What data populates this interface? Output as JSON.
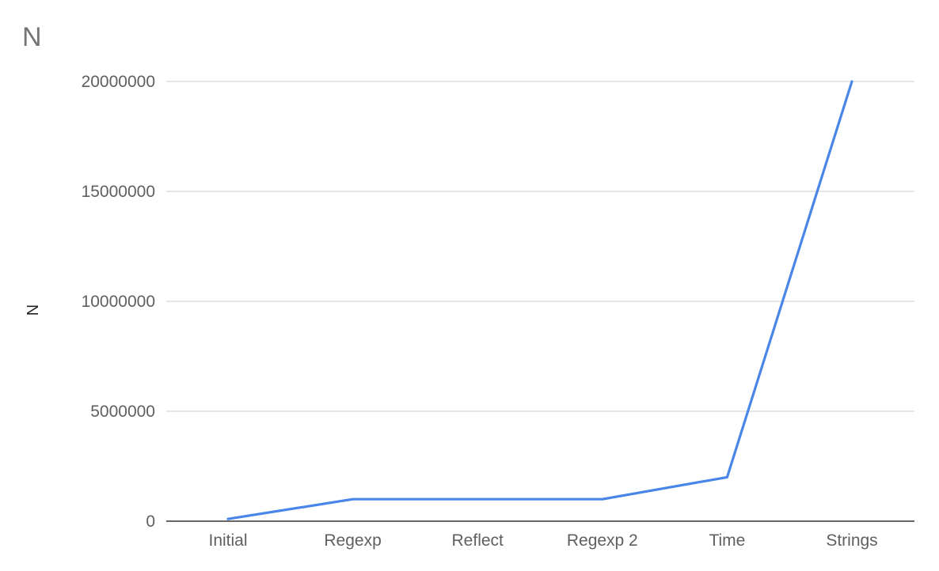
{
  "chart_data": {
    "type": "line",
    "title": "N",
    "xlabel": "",
    "ylabel": "N",
    "categories": [
      "Initial",
      "Regexp",
      "Reflect",
      "Regexp 2",
      "Time",
      "Strings"
    ],
    "series": [
      {
        "name": "",
        "values": [
          100000,
          1000000,
          1000000,
          1000000,
          2000000,
          20000000
        ]
      }
    ],
    "ylim": [
      0,
      20000000
    ],
    "yticks": [
      0,
      5000000,
      10000000,
      15000000,
      20000000
    ],
    "ytick_labels": [
      "0",
      "5000000",
      "10000000",
      "15000000",
      "20000000"
    ],
    "grid": true,
    "legend": "none",
    "colors": {
      "series": "#4a86e8",
      "grid": "#cccccc",
      "baseline": "#333333"
    }
  }
}
